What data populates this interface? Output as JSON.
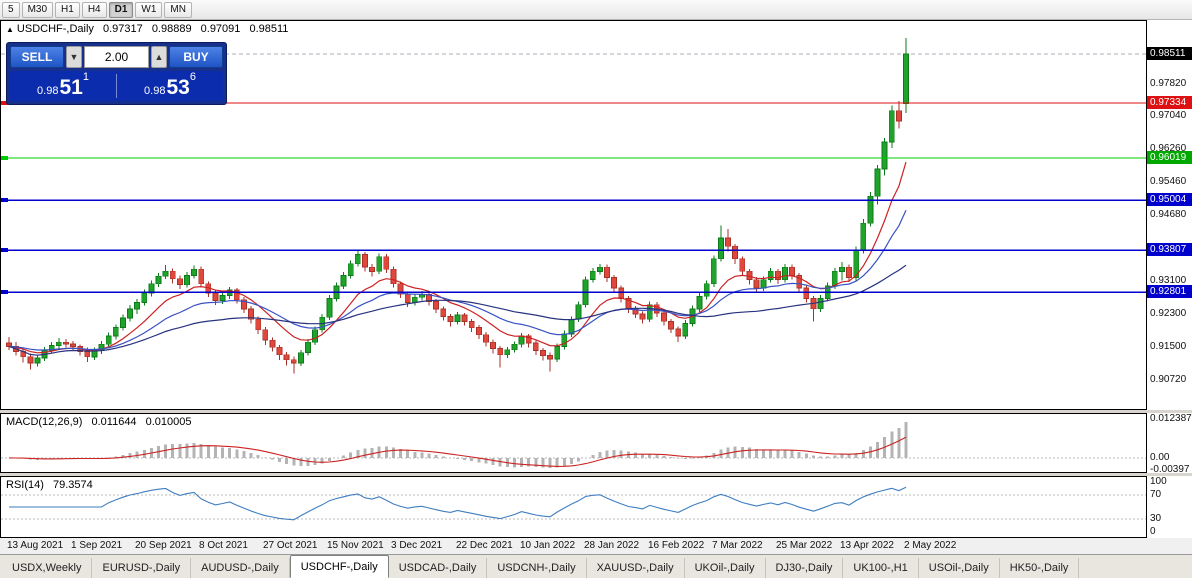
{
  "colors": {
    "up": "#1fa32b",
    "up_stroke": "#0c7a1a",
    "down": "#e0483e",
    "down_stroke": "#a83228",
    "bid_line": "#aab0b8",
    "macd_bar": "#b4b4b4",
    "macd_signal": "#cc2222",
    "rsi_line": "#3e7ec1"
  },
  "toolbar": {
    "periods": [
      {
        "label": "5",
        "active": false
      },
      {
        "label": "M30",
        "active": false
      },
      {
        "label": "H1",
        "active": false
      },
      {
        "label": "H4",
        "active": false
      },
      {
        "label": "D1",
        "active": true
      },
      {
        "label": "W1",
        "active": false
      },
      {
        "label": "MN",
        "active": false
      }
    ]
  },
  "chart": {
    "info": {
      "marker": "▲",
      "title": "USDCHF-,Daily",
      "open": "0.97317",
      "high": "0.98889",
      "low": "0.97091",
      "close": "0.98511"
    },
    "trade_widget": {
      "sell_label": "SELL",
      "buy_label": "BUY",
      "volume": "2.00",
      "down_icon": "▼",
      "up_icon": "▲",
      "sell_price": {
        "prefix": "0.98",
        "big": "51",
        "sup": "1"
      },
      "buy_price": {
        "prefix": "0.98",
        "big": "53",
        "sup": "6"
      }
    },
    "price_scale": {
      "top": 0.993,
      "bottom": 0.9
    },
    "axis_labels": [
      "0.97820",
      "0.97040",
      "0.96260",
      "0.95460",
      "0.94680",
      "0.93100",
      "0.92300",
      "0.91500",
      "0.90720"
    ],
    "badges": [
      {
        "price": "0.98511",
        "bg": "#000000",
        "fg": "#ffffff"
      },
      {
        "price": "0.97334",
        "bg": "#dd1111",
        "fg": "#ffffff"
      },
      {
        "price": "0.96019",
        "bg": "#00a800",
        "fg": "#ffffff"
      },
      {
        "price": "0.95004",
        "bg": "#0000cc",
        "fg": "#ffffff"
      },
      {
        "price": "0.93807",
        "bg": "#0000cc",
        "fg": "#ffffff"
      },
      {
        "price": "0.92801",
        "bg": "#0000cc",
        "fg": "#ffffff"
      }
    ],
    "hlines": [
      {
        "price": 0.97334,
        "color": "#dd1111"
      },
      {
        "price": 0.96019,
        "color": "#00cc00"
      },
      {
        "price": 0.95004,
        "color": "#0000cc"
      },
      {
        "price": 0.93807,
        "color": "#0000cc"
      },
      {
        "price": 0.92801,
        "color": "#0000cc"
      }
    ]
  },
  "chart_data": {
    "type": "candlestick",
    "title": "USDCHF-,Daily",
    "y_range": [
      0.9,
      0.993
    ],
    "x_labels": [
      "13 Aug 2021",
      "1 Sep 2021",
      "20 Sep 2021",
      "8 Oct 2021",
      "27 Oct 2021",
      "15 Nov 2021",
      "3 Dec 2021",
      "22 Dec 2021",
      "10 Jan 2022",
      "28 Jan 2022",
      "16 Feb 2022",
      "7 Mar 2022",
      "25 Mar 2022",
      "13 Apr 2022",
      "2 May 2022"
    ],
    "last_bar": {
      "open": 0.97317,
      "high": 0.98889,
      "low": 0.97091,
      "close": 0.98511
    },
    "horizontal_levels": [
      0.97334,
      0.96019,
      0.95004,
      0.93807,
      0.92801
    ],
    "moving_averages": [
      {
        "type": "ema",
        "period": 10,
        "color": "#cc2222"
      },
      {
        "type": "ema",
        "period": 21,
        "color": "#3a52c4"
      },
      {
        "type": "sma",
        "period": 45,
        "color": "#28337f"
      }
    ],
    "candles": [
      [
        0.9158,
        0.9172,
        0.9142,
        0.915
      ],
      [
        0.915,
        0.916,
        0.9128,
        0.9138
      ],
      [
        0.9138,
        0.9146,
        0.9112,
        0.9125
      ],
      [
        0.9125,
        0.9133,
        0.9095,
        0.911
      ],
      [
        0.911,
        0.9131,
        0.9102,
        0.9122
      ],
      [
        0.9122,
        0.9149,
        0.9115,
        0.914
      ],
      [
        0.914,
        0.9161,
        0.9133,
        0.9152
      ],
      [
        0.9152,
        0.917,
        0.9144,
        0.916
      ],
      [
        0.916,
        0.9168,
        0.9147,
        0.9156
      ],
      [
        0.9156,
        0.9163,
        0.9141,
        0.915
      ],
      [
        0.915,
        0.9155,
        0.9128,
        0.9138
      ],
      [
        0.9138,
        0.9147,
        0.9113,
        0.9125
      ],
      [
        0.9125,
        0.9148,
        0.9118,
        0.914
      ],
      [
        0.914,
        0.9163,
        0.9132,
        0.9155
      ],
      [
        0.9155,
        0.9183,
        0.9149,
        0.9175
      ],
      [
        0.9175,
        0.9203,
        0.9166,
        0.9195
      ],
      [
        0.9195,
        0.9226,
        0.9188,
        0.9218
      ],
      [
        0.9218,
        0.9249,
        0.921,
        0.924
      ],
      [
        0.924,
        0.9264,
        0.9228,
        0.9255
      ],
      [
        0.9255,
        0.9286,
        0.9248,
        0.9278
      ],
      [
        0.9278,
        0.9308,
        0.927,
        0.93
      ],
      [
        0.93,
        0.9326,
        0.9293,
        0.9318
      ],
      [
        0.9318,
        0.9345,
        0.9311,
        0.933
      ],
      [
        0.933,
        0.9337,
        0.9301,
        0.9312
      ],
      [
        0.9312,
        0.932,
        0.9288,
        0.9298
      ],
      [
        0.9298,
        0.9328,
        0.9291,
        0.932
      ],
      [
        0.932,
        0.9344,
        0.9313,
        0.9335
      ],
      [
        0.9335,
        0.9341,
        0.9291,
        0.93
      ],
      [
        0.93,
        0.9306,
        0.9268,
        0.9278
      ],
      [
        0.9278,
        0.9284,
        0.9249,
        0.926
      ],
      [
        0.926,
        0.928,
        0.9252,
        0.9272
      ],
      [
        0.9272,
        0.9293,
        0.9264,
        0.9285
      ],
      [
        0.9285,
        0.929,
        0.9253,
        0.9262
      ],
      [
        0.9262,
        0.9269,
        0.923,
        0.924
      ],
      [
        0.924,
        0.9247,
        0.9205,
        0.9215
      ],
      [
        0.9215,
        0.9222,
        0.918,
        0.919
      ],
      [
        0.919,
        0.9196,
        0.9154,
        0.9165
      ],
      [
        0.9165,
        0.9171,
        0.9138,
        0.9148
      ],
      [
        0.9148,
        0.9154,
        0.9118,
        0.913
      ],
      [
        0.913,
        0.9137,
        0.9104,
        0.9118
      ],
      [
        0.9118,
        0.9126,
        0.9085,
        0.911
      ],
      [
        0.911,
        0.9142,
        0.9103,
        0.9135
      ],
      [
        0.9135,
        0.9168,
        0.9128,
        0.916
      ],
      [
        0.916,
        0.9198,
        0.9153,
        0.919
      ],
      [
        0.919,
        0.9228,
        0.9183,
        0.922
      ],
      [
        0.922,
        0.9273,
        0.9213,
        0.9265
      ],
      [
        0.9265,
        0.9303,
        0.9258,
        0.9295
      ],
      [
        0.9295,
        0.9328,
        0.9288,
        0.932
      ],
      [
        0.932,
        0.9356,
        0.9313,
        0.9348
      ],
      [
        0.9348,
        0.938,
        0.9341,
        0.937
      ],
      [
        0.937,
        0.9376,
        0.933,
        0.934
      ],
      [
        0.934,
        0.9348,
        0.9318,
        0.933
      ],
      [
        0.933,
        0.9373,
        0.9323,
        0.9365
      ],
      [
        0.9365,
        0.9371,
        0.9326,
        0.9335
      ],
      [
        0.9335,
        0.9341,
        0.9291,
        0.93
      ],
      [
        0.93,
        0.9306,
        0.9266,
        0.9275
      ],
      [
        0.9275,
        0.9281,
        0.9244,
        0.9255
      ],
      [
        0.9255,
        0.9276,
        0.9248,
        0.9268
      ],
      [
        0.9268,
        0.9283,
        0.926,
        0.9275
      ],
      [
        0.9275,
        0.928,
        0.9248,
        0.9258
      ],
      [
        0.9258,
        0.9264,
        0.923,
        0.924
      ],
      [
        0.924,
        0.9246,
        0.9212,
        0.9222
      ],
      [
        0.9222,
        0.9228,
        0.9198,
        0.921
      ],
      [
        0.921,
        0.9233,
        0.9202,
        0.9225
      ],
      [
        0.9225,
        0.923,
        0.92,
        0.921
      ],
      [
        0.921,
        0.9216,
        0.9185,
        0.9195
      ],
      [
        0.9195,
        0.9201,
        0.9168,
        0.9178
      ],
      [
        0.9178,
        0.9184,
        0.915,
        0.916
      ],
      [
        0.916,
        0.9166,
        0.9133,
        0.9145
      ],
      [
        0.9145,
        0.9151,
        0.91,
        0.913
      ],
      [
        0.913,
        0.9149,
        0.9122,
        0.9142
      ],
      [
        0.9142,
        0.9162,
        0.9135,
        0.9155
      ],
      [
        0.9155,
        0.9182,
        0.9148,
        0.9175
      ],
      [
        0.9175,
        0.918,
        0.9148,
        0.9158
      ],
      [
        0.9158,
        0.9164,
        0.913,
        0.914
      ],
      [
        0.914,
        0.9146,
        0.9116,
        0.9128
      ],
      [
        0.9128,
        0.9135,
        0.909,
        0.912
      ],
      [
        0.912,
        0.9157,
        0.9113,
        0.915
      ],
      [
        0.915,
        0.9188,
        0.9143,
        0.918
      ],
      [
        0.918,
        0.9222,
        0.9173,
        0.9215
      ],
      [
        0.9215,
        0.9258,
        0.9208,
        0.925
      ],
      [
        0.925,
        0.9318,
        0.9243,
        0.931
      ],
      [
        0.931,
        0.9338,
        0.9303,
        0.933
      ],
      [
        0.933,
        0.9348,
        0.9322,
        0.934
      ],
      [
        0.934,
        0.9346,
        0.9305,
        0.9315
      ],
      [
        0.9315,
        0.9321,
        0.928,
        0.929
      ],
      [
        0.929,
        0.9296,
        0.9255,
        0.9265
      ],
      [
        0.9265,
        0.9271,
        0.923,
        0.924
      ],
      [
        0.924,
        0.9247,
        0.9218,
        0.9228
      ],
      [
        0.9228,
        0.9234,
        0.9205,
        0.9215
      ],
      [
        0.9215,
        0.9258,
        0.9208,
        0.925
      ],
      [
        0.925,
        0.9256,
        0.922,
        0.923
      ],
      [
        0.923,
        0.9236,
        0.92,
        0.921
      ],
      [
        0.921,
        0.9216,
        0.9182,
        0.9192
      ],
      [
        0.9192,
        0.9198,
        0.916,
        0.9175
      ],
      [
        0.9175,
        0.9213,
        0.9168,
        0.9205
      ],
      [
        0.9205,
        0.9248,
        0.9198,
        0.924
      ],
      [
        0.924,
        0.9278,
        0.9233,
        0.927
      ],
      [
        0.927,
        0.9308,
        0.9263,
        0.93
      ],
      [
        0.93,
        0.9368,
        0.9293,
        0.936
      ],
      [
        0.936,
        0.944,
        0.9353,
        0.941
      ],
      [
        0.941,
        0.9432,
        0.9378,
        0.939
      ],
      [
        0.939,
        0.9396,
        0.9348,
        0.936
      ],
      [
        0.936,
        0.9366,
        0.932,
        0.933
      ],
      [
        0.933,
        0.9336,
        0.9298,
        0.931
      ],
      [
        0.931,
        0.9316,
        0.9278,
        0.929
      ],
      [
        0.929,
        0.9318,
        0.9283,
        0.931
      ],
      [
        0.931,
        0.9338,
        0.9303,
        0.933
      ],
      [
        0.933,
        0.9336,
        0.93,
        0.931
      ],
      [
        0.931,
        0.9348,
        0.9303,
        0.934
      ],
      [
        0.934,
        0.9346,
        0.931,
        0.932
      ],
      [
        0.932,
        0.9326,
        0.928,
        0.929
      ],
      [
        0.929,
        0.9296,
        0.9255,
        0.9265
      ],
      [
        0.9265,
        0.9271,
        0.921,
        0.924
      ],
      [
        0.924,
        0.9273,
        0.9233,
        0.9265
      ],
      [
        0.9265,
        0.9303,
        0.9258,
        0.9295
      ],
      [
        0.9295,
        0.9338,
        0.9288,
        0.933
      ],
      [
        0.933,
        0.9352,
        0.9308,
        0.934
      ],
      [
        0.934,
        0.9346,
        0.9305,
        0.9315
      ],
      [
        0.9315,
        0.939,
        0.9308,
        0.938
      ],
      [
        0.938,
        0.9455,
        0.9373,
        0.9445
      ],
      [
        0.9445,
        0.952,
        0.9438,
        0.951
      ],
      [
        0.951,
        0.9585,
        0.949,
        0.9575
      ],
      [
        0.9575,
        0.965,
        0.956,
        0.964
      ],
      [
        0.964,
        0.9728,
        0.9625,
        0.9715
      ],
      [
        0.9715,
        0.9738,
        0.9672,
        0.969
      ],
      [
        0.97317,
        0.98889,
        0.97091,
        0.98511
      ]
    ]
  },
  "macd": {
    "name": "MACD(12,26,9)",
    "value_main": "0.011644",
    "value_signal": "0.010005",
    "fast": 12,
    "slow": 26,
    "signal": 9,
    "scale": {
      "top": 0.014,
      "bottom": -0.0045
    },
    "axis": [
      {
        "text": "0.012387",
        "v": 0.012387
      },
      {
        "text": "0.00",
        "v": 0
      },
      {
        "text": "-0.00397",
        "v": -0.00397
      }
    ]
  },
  "rsi": {
    "name": "RSI(14)",
    "value": "79.3574",
    "period": 14,
    "levels": [
      70,
      30
    ],
    "scale": {
      "top": 100,
      "bottom": 0
    },
    "axis": [
      {
        "text": "100",
        "v": 100
      },
      {
        "text": "70",
        "v": 70
      },
      {
        "text": "30",
        "v": 30
      },
      {
        "text": "0",
        "v": 0
      }
    ]
  },
  "tabbar": {
    "tabs": [
      {
        "label": "USDX,Weekly",
        "active": false
      },
      {
        "label": "EURUSD-,Daily",
        "active": false
      },
      {
        "label": "AUDUSD-,Daily",
        "active": false
      },
      {
        "label": "USDCHF-,Daily",
        "active": true
      },
      {
        "label": "USDCAD-,Daily",
        "active": false
      },
      {
        "label": "USDCNH-,Daily",
        "active": false
      },
      {
        "label": "XAUUSD-,Daily",
        "active": false
      },
      {
        "label": "UKOil-,Daily",
        "active": false
      },
      {
        "label": "DJ30-,Daily",
        "active": false
      },
      {
        "label": "UK100-,H1",
        "active": false
      },
      {
        "label": "USOil-,Daily",
        "active": false
      },
      {
        "label": "HK50-,Daily",
        "active": false
      }
    ]
  }
}
